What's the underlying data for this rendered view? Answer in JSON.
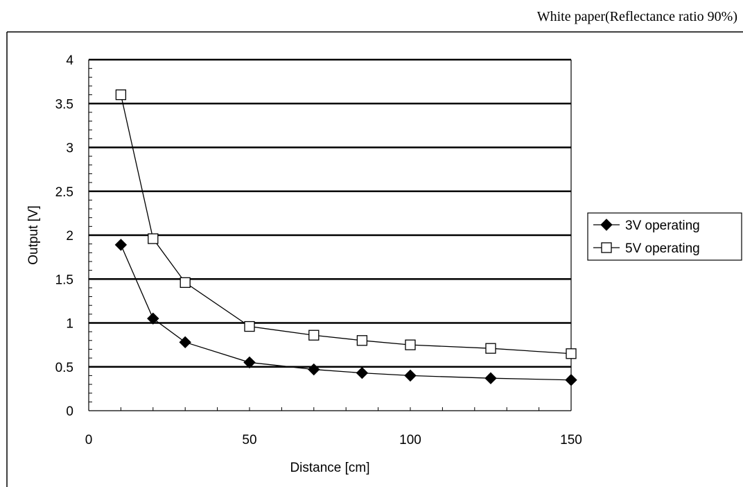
{
  "chart_data": {
    "type": "line",
    "caption": "White paper(Reflectance ratio 90%)",
    "xlabel": "Distance [cm]",
    "ylabel": "Output [V]",
    "xlim": [
      0,
      150
    ],
    "ylim": [
      0,
      4
    ],
    "xticks": [
      0,
      50,
      100,
      150
    ],
    "yticks": [
      0,
      0.5,
      1,
      1.5,
      2,
      2.5,
      3,
      3.5,
      4
    ],
    "xtick_labels": [
      "0",
      "50",
      "100",
      "150"
    ],
    "ytick_labels": [
      "0",
      "0.5",
      "1",
      "1.5",
      "2",
      "2.5",
      "3",
      "3.5",
      "4"
    ],
    "grid": "horizontal",
    "legend_position": "right",
    "x": [
      10,
      20,
      30,
      50,
      70,
      85,
      100,
      125,
      150
    ],
    "series": [
      {
        "name": "3V operating",
        "marker": "filled-diamond",
        "values": [
          1.89,
          1.05,
          0.78,
          0.55,
          0.47,
          0.43,
          0.4,
          0.37,
          0.35
        ]
      },
      {
        "name": "5V operating",
        "marker": "hollow-square",
        "values": [
          3.6,
          1.96,
          1.46,
          0.96,
          0.86,
          0.8,
          0.75,
          0.71,
          0.65
        ]
      }
    ]
  }
}
